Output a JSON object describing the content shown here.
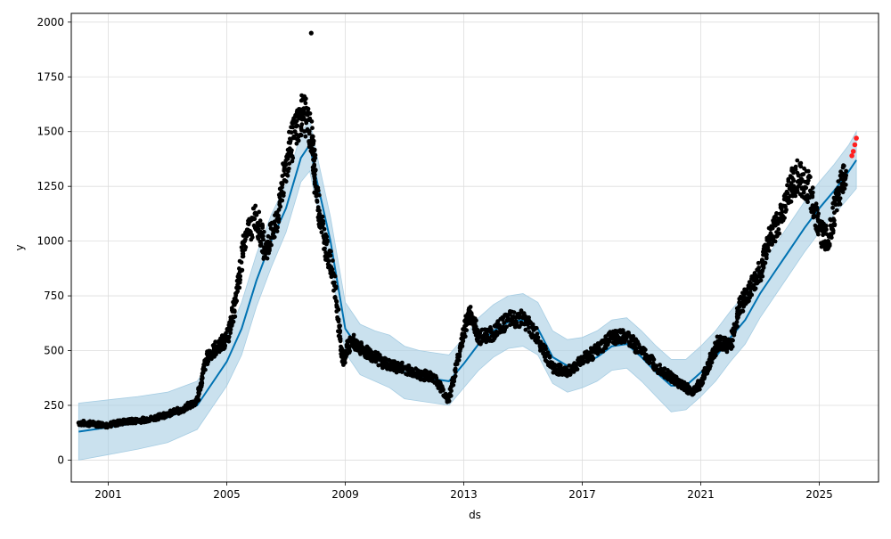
{
  "chart_data": {
    "type": "scatter",
    "title": "",
    "xlabel": "ds",
    "ylabel": "y",
    "xlim": [
      1999.75,
      2027.0
    ],
    "ylim": [
      -100,
      2040
    ],
    "grid": true,
    "x_ticks": [
      {
        "value": 2001,
        "label": "2001"
      },
      {
        "value": 2005,
        "label": "2005"
      },
      {
        "value": 2009,
        "label": "2009"
      },
      {
        "value": 2013,
        "label": "2013"
      },
      {
        "value": 2017,
        "label": "2017"
      },
      {
        "value": 2021,
        "label": "2021"
      },
      {
        "value": 2025,
        "label": "2025"
      }
    ],
    "y_ticks": [
      {
        "value": 0,
        "label": "0"
      },
      {
        "value": 250,
        "label": "250"
      },
      {
        "value": 500,
        "label": "500"
      },
      {
        "value": 750,
        "label": "750"
      },
      {
        "value": 1000,
        "label": "1000"
      },
      {
        "value": 1250,
        "label": "1250"
      },
      {
        "value": 1500,
        "label": "1500"
      },
      {
        "value": 1750,
        "label": "1750"
      },
      {
        "value": 2000,
        "label": "2000"
      }
    ],
    "colors": {
      "observed": "#000000",
      "forecast_points": "#ff2020",
      "trend_line": "#0072b2",
      "uncertainty_band": "#a6cde3"
    },
    "observed": {
      "x": [
        2000.0,
        2000.5,
        2001.0,
        2001.5,
        2002.0,
        2002.5,
        2003.0,
        2003.5,
        2004.0,
        2004.3,
        2004.7,
        2005.0,
        2005.3,
        2005.6,
        2006.0,
        2006.3,
        2006.7,
        2007.0,
        2007.3,
        2007.6,
        2007.9,
        2008.0,
        2008.3,
        2008.6,
        2008.9,
        2009.2,
        2009.6,
        2010.0,
        2010.5,
        2011.0,
        2011.5,
        2012.0,
        2012.5,
        2012.9,
        2013.2,
        2013.5,
        2014.0,
        2014.5,
        2015.0,
        2015.5,
        2016.0,
        2016.5,
        2017.0,
        2017.5,
        2018.0,
        2018.5,
        2019.0,
        2019.5,
        2020.0,
        2020.3,
        2020.7,
        2021.0,
        2021.3,
        2021.6,
        2022.0,
        2022.3,
        2022.6,
        2023.0,
        2023.3,
        2023.6,
        2024.0,
        2024.3,
        2024.7,
        2025.0,
        2025.3,
        2025.6,
        2025.9
      ],
      "y": [
        170,
        165,
        160,
        175,
        180,
        190,
        210,
        230,
        270,
        460,
        520,
        550,
        720,
        1000,
        1120,
        950,
        1100,
        1350,
        1500,
        1600,
        1450,
        1250,
        1000,
        850,
        450,
        550,
        500,
        470,
        430,
        420,
        390,
        380,
        270,
        530,
        680,
        560,
        580,
        640,
        650,
        560,
        420,
        400,
        460,
        500,
        560,
        560,
        500,
        430,
        380,
        350,
        310,
        350,
        450,
        540,
        520,
        700,
        760,
        860,
        1000,
        1080,
        1240,
        1300,
        1230,
        1050,
        1000,
        1200,
        1300
      ]
    },
    "outliers": [
      {
        "x": 2007.85,
        "y": 1950
      }
    ],
    "forecast_points": {
      "x": [
        2026.1,
        2026.15,
        2026.2,
        2026.25
      ],
      "y": [
        1390,
        1410,
        1440,
        1470
      ]
    },
    "trend": {
      "x": [
        2000.0,
        2001.0,
        2002.0,
        2003.0,
        2004.0,
        2005.0,
        2005.5,
        2006.0,
        2006.5,
        2007.0,
        2007.5,
        2007.8,
        2008.0,
        2008.5,
        2009.0,
        2009.5,
        2010.0,
        2010.5,
        2011.0,
        2011.5,
        2012.0,
        2012.5,
        2013.0,
        2013.5,
        2014.0,
        2014.5,
        2015.0,
        2015.5,
        2016.0,
        2016.5,
        2017.0,
        2017.5,
        2018.0,
        2018.5,
        2019.0,
        2019.5,
        2020.0,
        2020.5,
        2021.0,
        2021.5,
        2022.0,
        2022.5,
        2023.0,
        2023.5,
        2024.0,
        2024.5,
        2025.0,
        2025.5,
        2026.0,
        2026.25
      ],
      "y": [
        130,
        150,
        170,
        195,
        250,
        450,
        600,
        820,
        1000,
        1150,
        1380,
        1440,
        1300,
        1000,
        600,
        500,
        470,
        450,
        400,
        380,
        370,
        360,
        440,
        530,
        590,
        630,
        640,
        600,
        470,
        430,
        440,
        470,
        520,
        530,
        470,
        400,
        340,
        340,
        400,
        470,
        560,
        640,
        760,
        860,
        960,
        1060,
        1150,
        1230,
        1320,
        1370
      ]
    },
    "band_lower": [
      0,
      25,
      50,
      80,
      140,
      340,
      480,
      700,
      880,
      1040,
      1270,
      1320,
      1190,
      890,
      490,
      390,
      360,
      330,
      280,
      270,
      260,
      250,
      330,
      410,
      470,
      510,
      520,
      480,
      350,
      310,
      330,
      360,
      410,
      420,
      360,
      290,
      220,
      230,
      290,
      360,
      450,
      530,
      650,
      750,
      850,
      950,
      1040,
      1120,
      1200,
      1240
    ],
    "band_upper": [
      260,
      275,
      290,
      310,
      360,
      560,
      720,
      940,
      1120,
      1260,
      1490,
      1560,
      1420,
      1110,
      720,
      620,
      590,
      570,
      520,
      500,
      490,
      480,
      560,
      650,
      710,
      750,
      760,
      720,
      590,
      550,
      560,
      590,
      640,
      650,
      590,
      520,
      460,
      460,
      520,
      590,
      680,
      760,
      880,
      980,
      1080,
      1180,
      1270,
      1350,
      1440,
      1500
    ]
  }
}
